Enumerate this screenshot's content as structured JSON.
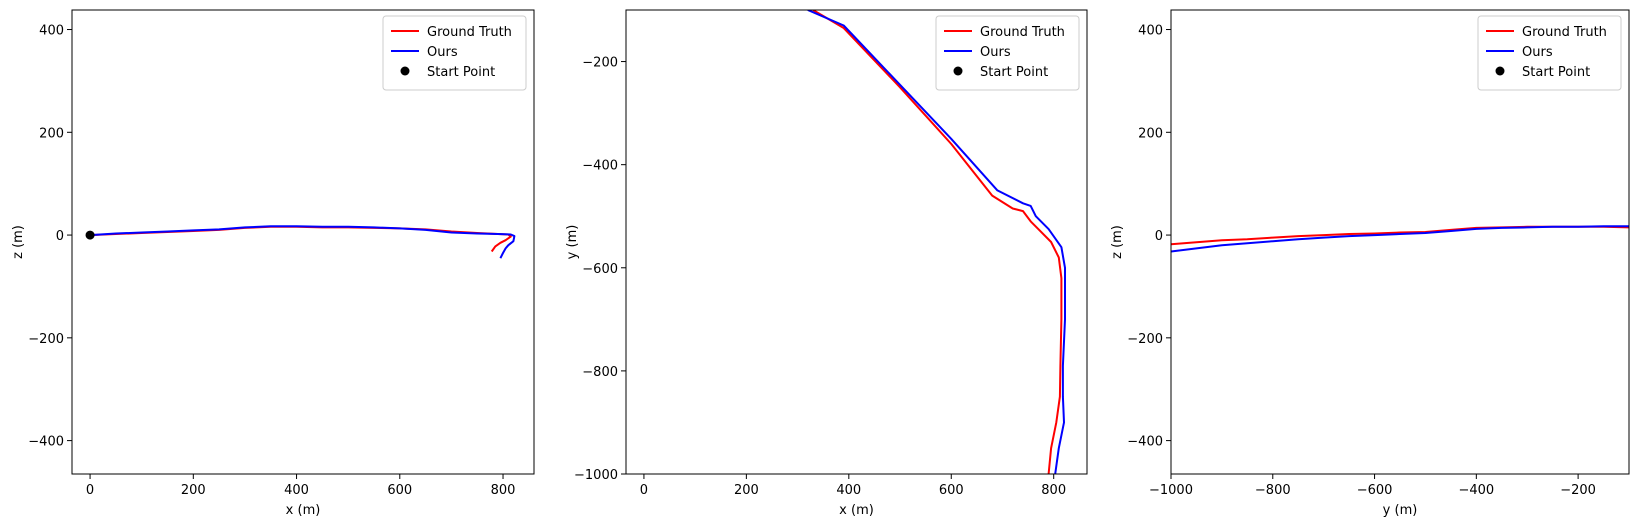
{
  "chart_data": [
    {
      "type": "line",
      "xlabel": "x (m)",
      "ylabel": "z (m)",
      "xlim": [
        -35,
        860
      ],
      "ylim": [
        -465,
        438
      ],
      "xticks": [
        0,
        200,
        400,
        600,
        800
      ],
      "yticks": [
        -400,
        -200,
        0,
        200,
        400
      ],
      "legend": {
        "position": "top-right",
        "entries": [
          "Ground Truth",
          "Ours",
          "Start Point"
        ]
      },
      "series": [
        {
          "name": "Ground Truth",
          "color": "#ff0000",
          "x": [
            0,
            50,
            100,
            150,
            200,
            250,
            300,
            350,
            400,
            450,
            500,
            550,
            600,
            650,
            700,
            750,
            790,
            810,
            815,
            805,
            795,
            785,
            778
          ],
          "y": [
            0,
            2,
            4,
            6,
            8,
            10,
            14,
            16,
            16,
            15,
            15,
            14,
            13,
            11,
            7,
            4,
            2,
            1,
            -3,
            -10,
            -15,
            -22,
            -32
          ]
        },
        {
          "name": "Ours",
          "color": "#0000ff",
          "x": [
            0,
            50,
            100,
            150,
            200,
            250,
            300,
            350,
            400,
            450,
            500,
            550,
            600,
            650,
            700,
            750,
            790,
            815,
            822,
            820,
            810,
            805,
            800,
            795
          ],
          "y": [
            0,
            3,
            5,
            7,
            9,
            11,
            15,
            17,
            17,
            16,
            16,
            15,
            13,
            10,
            5,
            3,
            2,
            1,
            -2,
            -12,
            -20,
            -26,
            -35,
            -45
          ]
        }
      ],
      "points": [
        {
          "name": "Start Point",
          "color": "#000000",
          "x": 0,
          "y": 0
        }
      ]
    },
    {
      "type": "line",
      "xlabel": "x (m)",
      "ylabel": "y (m)",
      "xlim": [
        -35,
        865
      ],
      "ylim": [
        -1000,
        -100
      ],
      "xticks": [
        0,
        200,
        400,
        600,
        800
      ],
      "yticks": [
        -1000,
        -800,
        -600,
        -400,
        -200
      ],
      "legend": {
        "position": "top-right",
        "entries": [
          "Ground Truth",
          "Ours",
          "Start Point"
        ]
      },
      "series": [
        {
          "name": "Ground Truth",
          "color": "#ff0000",
          "x": [
            330,
            390,
            500,
            600,
            680,
            720,
            740,
            755,
            770,
            795,
            810,
            815,
            815,
            813,
            812,
            805,
            795,
            790
          ],
          "y": [
            -100,
            -135,
            -250,
            -360,
            -460,
            -485,
            -490,
            -510,
            -525,
            -550,
            -580,
            -620,
            -700,
            -790,
            -850,
            -900,
            -950,
            -1000
          ],
          "note": ""
        },
        {
          "name": "Ours",
          "color": "#0000ff",
          "x": [
            320,
            390,
            500,
            600,
            690,
            740,
            755,
            765,
            790,
            815,
            822,
            822,
            818,
            818,
            820,
            810,
            803
          ],
          "y": [
            -100,
            -130,
            -245,
            -350,
            -450,
            -475,
            -480,
            -500,
            -525,
            -560,
            -600,
            -700,
            -790,
            -850,
            -900,
            -950,
            -1000
          ]
        }
      ],
      "points": []
    },
    {
      "type": "line",
      "xlabel": "y (m)",
      "ylabel": "z (m)",
      "xlim": [
        -1000,
        -100
      ],
      "ylim": [
        -465,
        438
      ],
      "xticks": [
        -1000,
        -800,
        -600,
        -400,
        -200
      ],
      "yticks": [
        -400,
        -200,
        0,
        200,
        400
      ],
      "legend": {
        "position": "top-right",
        "entries": [
          "Ground Truth",
          "Ours",
          "Start Point"
        ]
      },
      "series": [
        {
          "name": "Ground Truth",
          "color": "#ff0000",
          "x": [
            -1000,
            -950,
            -900,
            -850,
            -800,
            -750,
            -700,
            -650,
            -600,
            -550,
            -500,
            -450,
            -400,
            -350,
            -300,
            -250,
            -200,
            -150,
            -100
          ],
          "y": [
            -18,
            -14,
            -10,
            -8,
            -5,
            -2,
            0,
            2,
            3,
            5,
            6,
            10,
            14,
            15,
            16,
            16,
            16,
            16,
            15
          ]
        },
        {
          "name": "Ours",
          "color": "#0000ff",
          "x": [
            -1000,
            -950,
            -900,
            -850,
            -800,
            -750,
            -700,
            -650,
            -600,
            -550,
            -500,
            -450,
            -400,
            -350,
            -300,
            -250,
            -200,
            -150,
            -100
          ],
          "y": [
            -32,
            -26,
            -20,
            -16,
            -12,
            -8,
            -5,
            -2,
            0,
            2,
            4,
            8,
            12,
            14,
            15,
            16,
            16,
            17,
            17
          ]
        }
      ],
      "points": []
    }
  ]
}
